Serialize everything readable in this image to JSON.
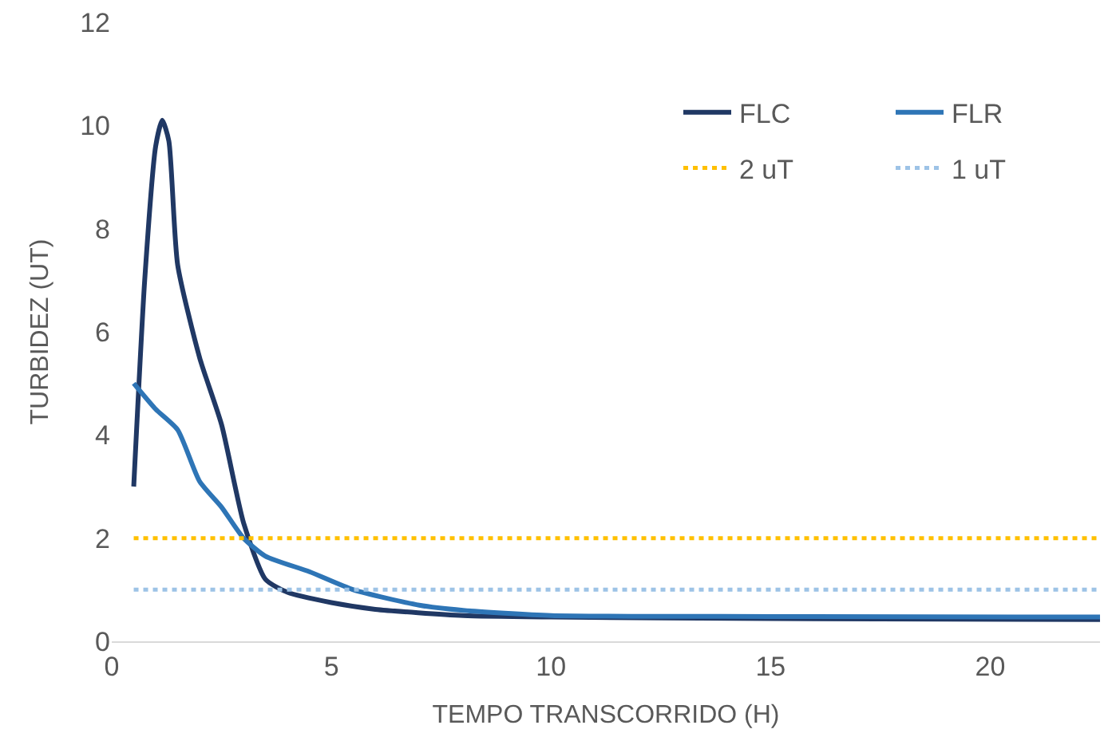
{
  "chart_data": {
    "type": "line",
    "xlabel": "TEMPO TRANSCORRIDO (H)",
    "ylabel": "TURBIDEZ (UT)",
    "xlim": [
      0,
      22.5
    ],
    "xticks": [
      0,
      5,
      10,
      15,
      20
    ],
    "ylim": [
      0,
      12
    ],
    "yticks": [
      0,
      2,
      4,
      6,
      8,
      10,
      12
    ],
    "legend": "top right",
    "marker": "none",
    "series": [
      {
        "name": "FLC",
        "color": "#203864",
        "line_style": "solid",
        "x": [
          0.5,
          0.75,
          1.0,
          1.15,
          1.3,
          1.5,
          2,
          2.5,
          3,
          3.5,
          4,
          5,
          6,
          8,
          10,
          15,
          22.5
        ],
        "values": [
          3.0,
          7.0,
          9.6,
          10.1,
          9.7,
          7.3,
          5.5,
          4.2,
          2.3,
          1.2,
          0.95,
          0.75,
          0.62,
          0.5,
          0.47,
          0.44,
          0.42
        ]
      },
      {
        "name": "FLR",
        "color": "#2e75b6",
        "line_style": "solid",
        "x": [
          0.5,
          1.0,
          1.5,
          2,
          2.5,
          3,
          3.5,
          4.5,
          5.5,
          7,
          8,
          10,
          15,
          22.5
        ],
        "values": [
          5.0,
          4.5,
          4.1,
          3.1,
          2.6,
          2.0,
          1.65,
          1.35,
          1.0,
          0.7,
          0.6,
          0.5,
          0.48,
          0.47
        ]
      },
      {
        "name": "2 uT",
        "color": "#ffc000",
        "line_style": "dotted",
        "x": [
          0.5,
          22.5
        ],
        "values": [
          2,
          2
        ]
      },
      {
        "name": "1 uT",
        "color": "#9dc3e6",
        "line_style": "dotted",
        "x": [
          0.5,
          22.5
        ],
        "values": [
          1,
          1
        ]
      }
    ]
  }
}
